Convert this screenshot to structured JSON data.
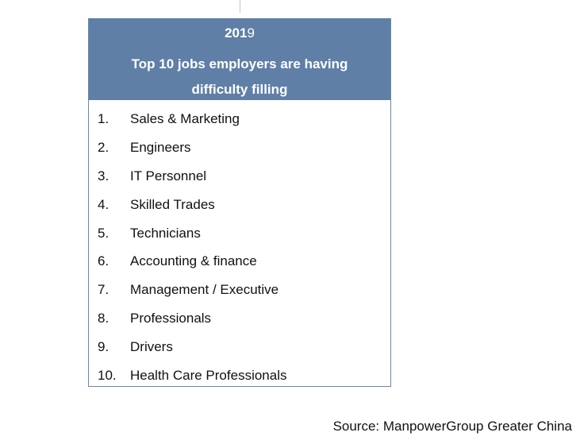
{
  "header": {
    "year_main": "201",
    "year_tail": "9",
    "title": "Top 10 jobs employers are having difficulty filling"
  },
  "jobs": [
    {
      "rank": "1.",
      "name": "Sales & Marketing"
    },
    {
      "rank": "2.",
      "name": "Engineers"
    },
    {
      "rank": "3.",
      "name": "IT Personnel"
    },
    {
      "rank": "4.",
      "name": "Skilled Trades"
    },
    {
      "rank": "5.",
      "name": "Technicians"
    },
    {
      "rank": "6.",
      "name": "Accounting & finance"
    },
    {
      "rank": "7.",
      "name": "Management / Executive"
    },
    {
      "rank": "8.",
      "name": "Professionals"
    },
    {
      "rank": "9.",
      "name": "Drivers"
    },
    {
      "rank": "10.",
      "name": "Health Care Professionals"
    }
  ],
  "source": "Source: ManpowerGroup Greater China",
  "colors": {
    "header_background": "#5f7fa6",
    "border": "#6b86a8"
  }
}
